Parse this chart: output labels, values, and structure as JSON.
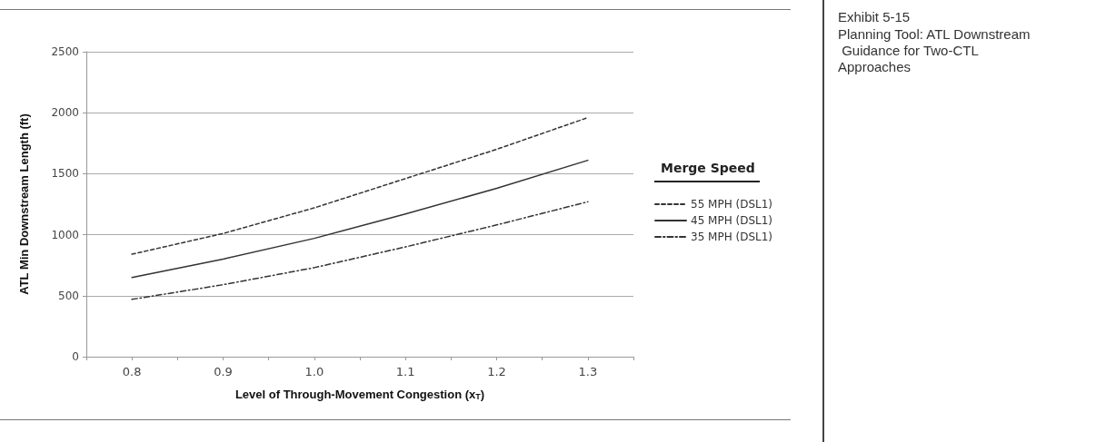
{
  "chart_data": {
    "type": "line",
    "title": "Exhibit 5-15",
    "subtitle": "Planning Tool: ATL Downstream Guidance for Two-CTL Approaches",
    "xlabel": "Level of Through-Movement Congestion (x$_{T}$)",
    "ylabel": "ATL Min Downstream Length (ft)",
    "legend_title": "Merge Speed",
    "x": [
      0.8,
      0.9,
      1.0,
      1.1,
      1.2,
      1.3
    ],
    "series": [
      {
        "name": "55 MPH (DSL1)",
        "color": "#333333",
        "line_style": "dashed",
        "values": [
          840,
          1010,
          1220,
          1460,
          1700,
          1960
        ]
      },
      {
        "name": "45 MPH (DSL1)",
        "color": "#333333",
        "line_style": "solid",
        "values": [
          650,
          800,
          970,
          1170,
          1380,
          1610
        ]
      },
      {
        "name": "35 MPH (DSL1)",
        "color": "#333333",
        "line_style": "dashdot",
        "values": [
          470,
          590,
          730,
          900,
          1080,
          1270
        ]
      }
    ],
    "xlim": [
      0.75,
      1.35
    ],
    "xticks": [
      {
        "value": 0.75,
        "label": null
      },
      0.8,
      {
        "value": 0.85,
        "label": null
      },
      0.9,
      {
        "value": 0.95,
        "label": null
      },
      {
        "value": 1.0,
        "label": "1.0"
      },
      {
        "value": 1.05,
        "label": null
      },
      1.1,
      {
        "value": 1.15,
        "label": null
      },
      1.2,
      {
        "value": 1.25,
        "label": null
      },
      1.3,
      {
        "value": 1.35,
        "label": null
      }
    ],
    "ylim": [
      0,
      2500
    ],
    "yticks": [
      0,
      500,
      1000,
      1500,
      2000,
      2500
    ],
    "grid": "y",
    "legend": "right",
    "marker": "none"
  }
}
